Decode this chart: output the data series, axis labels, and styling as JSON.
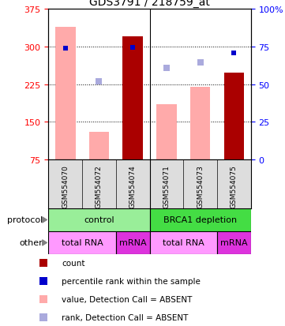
{
  "title": "GDS3791 / 218759_at",
  "samples": [
    "GSM554070",
    "GSM554072",
    "GSM554074",
    "GSM554071",
    "GSM554073",
    "GSM554075"
  ],
  "bar_values_absent": [
    340,
    130,
    0,
    185,
    220,
    0
  ],
  "bar_values_present": [
    0,
    0,
    320,
    0,
    0,
    248
  ],
  "rank_absent": [
    null,
    230,
    null,
    258,
    268,
    null
  ],
  "rank_present": [
    297,
    null,
    298,
    null,
    null,
    288
  ],
  "ylim_left": [
    75,
    375
  ],
  "yticks_left": [
    75,
    150,
    225,
    300,
    375
  ],
  "ylim_right": [
    0,
    100
  ],
  "yticks_right": [
    0,
    25,
    50,
    75,
    100
  ],
  "color_bar_absent": "#ffaaaa",
  "color_bar_present": "#aa0000",
  "color_rank_absent": "#aaaadd",
  "color_rank_present": "#0000cc",
  "protocol_groups": [
    {
      "label": "control",
      "start": 0,
      "end": 3,
      "color": "#99ee99"
    },
    {
      "label": "BRCA1 depletion",
      "start": 3,
      "end": 6,
      "color": "#44dd44"
    }
  ],
  "other_groups": [
    {
      "label": "total RNA",
      "start": 0,
      "end": 2,
      "color": "#ff99ff"
    },
    {
      "label": "mRNA",
      "start": 2,
      "end": 3,
      "color": "#dd33dd"
    },
    {
      "label": "total RNA",
      "start": 3,
      "end": 5,
      "color": "#ff99ff"
    },
    {
      "label": "mRNA",
      "start": 5,
      "end": 6,
      "color": "#dd33dd"
    }
  ],
  "legend_items": [
    {
      "label": "count",
      "color": "#aa0000"
    },
    {
      "label": "percentile rank within the sample",
      "color": "#0000cc"
    },
    {
      "label": "value, Detection Call = ABSENT",
      "color": "#ffaaaa"
    },
    {
      "label": "rank, Detection Call = ABSENT",
      "color": "#aaaadd"
    }
  ],
  "protocol_label": "protocol",
  "other_label": "other"
}
